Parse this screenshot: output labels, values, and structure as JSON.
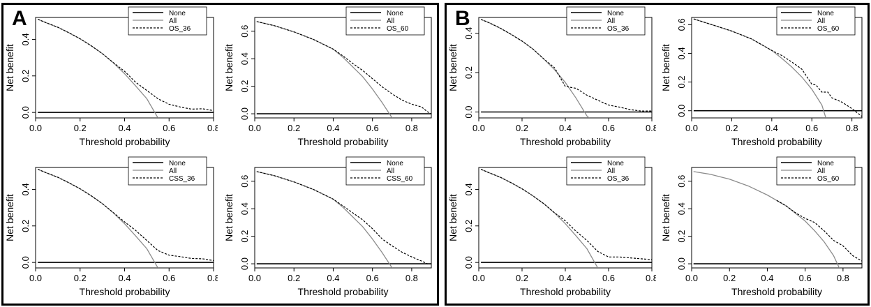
{
  "panels": [
    {
      "letter": "A"
    },
    {
      "letter": "B"
    }
  ],
  "colors": {
    "none": "#000000",
    "all": "#8c8c8c",
    "model": "#000000",
    "frame": "#000000"
  },
  "chart_data": [
    {
      "type": "line",
      "panel": "A",
      "xlabel": "Threshold probability",
      "ylabel": "Net benefit",
      "xlim": [
        0,
        0.8
      ],
      "ylim": [
        -0.03,
        0.52
      ],
      "xticks": [
        "0.0",
        "0.2",
        "0.4",
        "0.6",
        "0.8"
      ],
      "yticks": [
        "0.0",
        "0.2",
        "0.4"
      ],
      "legend": "top-right",
      "series": [
        {
          "name": "None",
          "style": "none",
          "x": [
            0.01,
            0.8
          ],
          "y": [
            0,
            0
          ]
        },
        {
          "name": "All",
          "style": "all",
          "x": [
            0.01,
            0.05,
            0.1,
            0.15,
            0.2,
            0.25,
            0.3,
            0.35,
            0.4,
            0.45,
            0.5,
            0.55
          ],
          "y": [
            0.51,
            0.49,
            0.466,
            0.436,
            0.403,
            0.365,
            0.322,
            0.271,
            0.212,
            0.145,
            0.075,
            -0.03
          ]
        },
        {
          "name": "OS_36",
          "style": "model",
          "x": [
            0.01,
            0.05,
            0.1,
            0.15,
            0.2,
            0.25,
            0.3,
            0.35,
            0.4,
            0.45,
            0.5,
            0.55,
            0.6,
            0.65,
            0.7,
            0.75,
            0.8
          ],
          "y": [
            0.51,
            0.49,
            0.466,
            0.436,
            0.403,
            0.365,
            0.322,
            0.272,
            0.225,
            0.165,
            0.12,
            0.075,
            0.045,
            0.03,
            0.018,
            0.02,
            0.01
          ]
        }
      ]
    },
    {
      "type": "line",
      "panel": "A",
      "xlabel": "Threshold probability",
      "ylabel": "Net benefit",
      "xlim": [
        0,
        0.9
      ],
      "ylim": [
        -0.03,
        0.7
      ],
      "xticks": [
        "0.0",
        "0.2",
        "0.4",
        "0.6",
        "0.8"
      ],
      "yticks": [
        "0.0",
        "0.2",
        "0.4",
        "0.6"
      ],
      "legend": "top-right",
      "series": [
        {
          "name": "None",
          "style": "none",
          "x": [
            0.01,
            0.9
          ],
          "y": [
            0,
            0
          ]
        },
        {
          "name": "All",
          "style": "all",
          "x": [
            0.01,
            0.1,
            0.2,
            0.3,
            0.4,
            0.45,
            0.5,
            0.55,
            0.6,
            0.65,
            0.7
          ],
          "y": [
            0.67,
            0.64,
            0.595,
            0.54,
            0.47,
            0.41,
            0.34,
            0.27,
            0.18,
            0.08,
            -0.03
          ]
        },
        {
          "name": "OS_60",
          "style": "model",
          "x": [
            0.01,
            0.1,
            0.2,
            0.3,
            0.4,
            0.45,
            0.5,
            0.55,
            0.6,
            0.65,
            0.7,
            0.75,
            0.8,
            0.85,
            0.88,
            0.9
          ],
          "y": [
            0.67,
            0.64,
            0.595,
            0.54,
            0.47,
            0.42,
            0.365,
            0.315,
            0.255,
            0.195,
            0.145,
            0.1,
            0.07,
            0.05,
            0.015,
            0.0
          ]
        }
      ]
    },
    {
      "type": "line",
      "panel": "A",
      "xlabel": "Threshold probability",
      "ylabel": "Net benefit",
      "xlim": [
        0,
        0.8
      ],
      "ylim": [
        -0.03,
        0.52
      ],
      "xticks": [
        "0.0",
        "0.2",
        "0.4",
        "0.6",
        "0.8"
      ],
      "yticks": [
        "0.0",
        "0.2",
        "0.4"
      ],
      "legend": "top-right",
      "series": [
        {
          "name": "None",
          "style": "none",
          "x": [
            0.01,
            0.8
          ],
          "y": [
            0,
            0
          ]
        },
        {
          "name": "All",
          "style": "all",
          "x": [
            0.01,
            0.05,
            0.1,
            0.15,
            0.2,
            0.25,
            0.3,
            0.35,
            0.4,
            0.45,
            0.5,
            0.55
          ],
          "y": [
            0.51,
            0.49,
            0.466,
            0.436,
            0.403,
            0.365,
            0.322,
            0.271,
            0.212,
            0.145,
            0.075,
            -0.03
          ]
        },
        {
          "name": "CSS_36",
          "style": "model",
          "x": [
            0.01,
            0.05,
            0.1,
            0.15,
            0.2,
            0.25,
            0.3,
            0.35,
            0.4,
            0.45,
            0.5,
            0.55,
            0.6,
            0.65,
            0.7,
            0.75,
            0.8
          ],
          "y": [
            0.51,
            0.49,
            0.466,
            0.436,
            0.403,
            0.365,
            0.322,
            0.272,
            0.222,
            0.175,
            0.12,
            0.065,
            0.04,
            0.032,
            0.022,
            0.02,
            0.01
          ]
        }
      ]
    },
    {
      "type": "line",
      "panel": "A",
      "xlabel": "Threshold probability",
      "ylabel": "Net benefit",
      "xlim": [
        0,
        0.9
      ],
      "ylim": [
        -0.03,
        0.7
      ],
      "xticks": [
        "0.0",
        "0.2",
        "0.4",
        "0.6",
        "0.8"
      ],
      "yticks": [
        "0.0",
        "0.2",
        "0.4",
        "0.6"
      ],
      "legend": "top-right",
      "series": [
        {
          "name": "None",
          "style": "none",
          "x": [
            0.01,
            0.9
          ],
          "y": [
            0,
            0
          ]
        },
        {
          "name": "All",
          "style": "all",
          "x": [
            0.01,
            0.1,
            0.2,
            0.3,
            0.4,
            0.45,
            0.5,
            0.55,
            0.6,
            0.65,
            0.7
          ],
          "y": [
            0.67,
            0.64,
            0.595,
            0.54,
            0.47,
            0.41,
            0.34,
            0.27,
            0.18,
            0.08,
            -0.03
          ]
        },
        {
          "name": "CSS_60",
          "style": "model",
          "x": [
            0.01,
            0.1,
            0.2,
            0.3,
            0.4,
            0.45,
            0.5,
            0.55,
            0.6,
            0.65,
            0.7,
            0.75,
            0.8,
            0.85,
            0.88,
            0.9
          ],
          "y": [
            0.67,
            0.64,
            0.595,
            0.54,
            0.47,
            0.42,
            0.37,
            0.32,
            0.255,
            0.18,
            0.13,
            0.085,
            0.05,
            0.02,
            0.0,
            0.0
          ]
        }
      ]
    },
    {
      "type": "line",
      "panel": "B",
      "xlabel": "Threshold probability",
      "ylabel": "Net benefit",
      "xlim": [
        0,
        0.8
      ],
      "ylim": [
        -0.03,
        0.48
      ],
      "xticks": [
        "0.0",
        "0.2",
        "0.4",
        "0.6",
        "0.8"
      ],
      "yticks": [
        "0.0",
        "0.2",
        "0.4"
      ],
      "legend": "top-right",
      "series": [
        {
          "name": "None",
          "style": "none",
          "x": [
            0.01,
            0.8
          ],
          "y": [
            0,
            0
          ]
        },
        {
          "name": "All",
          "style": "all",
          "x": [
            0.01,
            0.05,
            0.1,
            0.15,
            0.2,
            0.25,
            0.3,
            0.35,
            0.4,
            0.45,
            0.5,
            0.51
          ],
          "y": [
            0.47,
            0.452,
            0.425,
            0.394,
            0.36,
            0.32,
            0.27,
            0.215,
            0.15,
            0.07,
            -0.02,
            -0.03
          ]
        },
        {
          "name": "OS_36",
          "style": "model",
          "x": [
            0.01,
            0.05,
            0.1,
            0.15,
            0.2,
            0.25,
            0.3,
            0.35,
            0.4,
            0.45,
            0.5,
            0.55,
            0.6,
            0.65,
            0.7,
            0.75,
            0.8
          ],
          "y": [
            0.47,
            0.452,
            0.425,
            0.394,
            0.36,
            0.32,
            0.27,
            0.225,
            0.13,
            0.12,
            0.085,
            0.06,
            0.035,
            0.025,
            0.012,
            0.005,
            0.005
          ]
        }
      ]
    },
    {
      "type": "line",
      "panel": "B",
      "xlabel": "Threshold probability",
      "ylabel": "Net benefit",
      "xlim": [
        0,
        0.85
      ],
      "ylim": [
        -0.05,
        0.65
      ],
      "xticks": [
        "0.0",
        "0.2",
        "0.4",
        "0.6",
        "0.8"
      ],
      "yticks": [
        "0.0",
        "0.2",
        "0.4",
        "0.6"
      ],
      "legend": "top-right",
      "series": [
        {
          "name": "None",
          "style": "none",
          "x": [
            0.01,
            0.85
          ],
          "y": [
            0,
            0
          ]
        },
        {
          "name": "All",
          "style": "all",
          "x": [
            0.01,
            0.1,
            0.2,
            0.3,
            0.4,
            0.45,
            0.5,
            0.55,
            0.6,
            0.65,
            0.67
          ],
          "y": [
            0.64,
            0.6,
            0.555,
            0.5,
            0.42,
            0.365,
            0.305,
            0.235,
            0.15,
            0.04,
            -0.05
          ]
        },
        {
          "name": "OS_60",
          "style": "model",
          "x": [
            0.01,
            0.1,
            0.2,
            0.3,
            0.4,
            0.45,
            0.5,
            0.55,
            0.6,
            0.62,
            0.65,
            0.68,
            0.7,
            0.75,
            0.8,
            0.85
          ],
          "y": [
            0.64,
            0.6,
            0.555,
            0.5,
            0.42,
            0.385,
            0.34,
            0.29,
            0.185,
            0.18,
            0.13,
            0.13,
            0.09,
            0.06,
            0.015,
            -0.04
          ]
        }
      ]
    },
    {
      "type": "line",
      "panel": "B",
      "xlabel": "Threshold probability",
      "ylabel": "Net benefit",
      "xlim": [
        0,
        0.8
      ],
      "ylim": [
        -0.03,
        0.52
      ],
      "xticks": [
        "0.0",
        "0.2",
        "0.4",
        "0.6",
        "0.8"
      ],
      "yticks": [
        "0.0",
        "0.2",
        "0.4"
      ],
      "legend": "top-right",
      "series": [
        {
          "name": "None",
          "style": "none",
          "x": [
            0.01,
            0.8
          ],
          "y": [
            0,
            0
          ]
        },
        {
          "name": "All",
          "style": "all",
          "x": [
            0.01,
            0.05,
            0.1,
            0.15,
            0.2,
            0.25,
            0.3,
            0.35,
            0.4,
            0.45,
            0.5,
            0.55
          ],
          "y": [
            0.51,
            0.49,
            0.466,
            0.436,
            0.403,
            0.365,
            0.322,
            0.271,
            0.212,
            0.145,
            0.075,
            -0.03
          ]
        },
        {
          "name": "OS_36",
          "style": "model",
          "x": [
            0.01,
            0.05,
            0.1,
            0.15,
            0.2,
            0.25,
            0.3,
            0.35,
            0.4,
            0.45,
            0.5,
            0.55,
            0.6,
            0.65,
            0.7,
            0.75,
            0.8
          ],
          "y": [
            0.51,
            0.49,
            0.466,
            0.436,
            0.403,
            0.365,
            0.322,
            0.272,
            0.228,
            0.17,
            0.12,
            0.06,
            0.03,
            0.03,
            0.025,
            0.02,
            0.015
          ]
        }
      ]
    },
    {
      "type": "line",
      "panel": "B",
      "xlabel": "Threshold probability",
      "ylabel": "Net benefit",
      "xlim": [
        0,
        0.9
      ],
      "ylim": [
        -0.03,
        0.7
      ],
      "xticks": [
        "0.0",
        "0.2",
        "0.4",
        "0.6",
        "0.8"
      ],
      "yticks": [
        "0.0",
        "0.2",
        "0.4",
        "0.6"
      ],
      "legend": "top-right",
      "series": [
        {
          "name": "None",
          "style": "none",
          "x": [
            0.01,
            0.9
          ],
          "y": [
            0,
            0
          ]
        },
        {
          "name": "All",
          "style": "all",
          "x": [
            0.01,
            0.1,
            0.2,
            0.3,
            0.4,
            0.5,
            0.6,
            0.65,
            0.7,
            0.75,
            0.78
          ],
          "y": [
            0.67,
            0.65,
            0.615,
            0.565,
            0.5,
            0.42,
            0.31,
            0.24,
            0.16,
            0.06,
            -0.03
          ]
        },
        {
          "name": "OS_60",
          "style": "model",
          "x": [
            0.45,
            0.5,
            0.55,
            0.6,
            0.65,
            0.7,
            0.75,
            0.8,
            0.85,
            0.9
          ],
          "y": [
            0.46,
            0.42,
            0.37,
            0.33,
            0.3,
            0.24,
            0.17,
            0.13,
            0.06,
            0.02
          ]
        }
      ]
    }
  ]
}
